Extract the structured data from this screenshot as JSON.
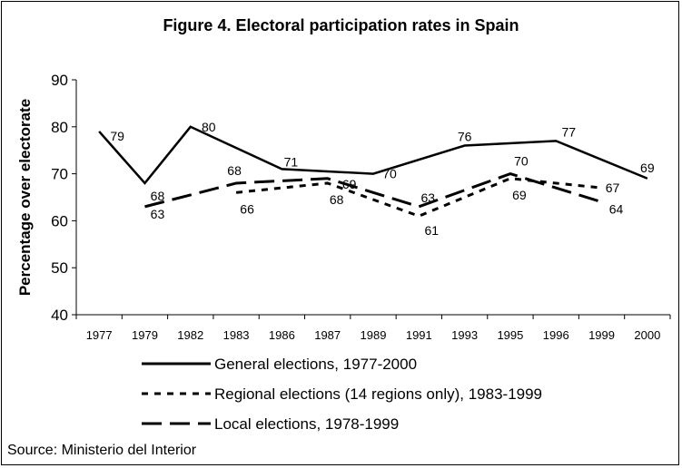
{
  "chart_data": {
    "type": "line",
    "title": "Figure 4. Electoral participation rates in Spain",
    "ylabel": "Percentage over electorate",
    "xlabel": "",
    "ylim": [
      40,
      90
    ],
    "yticks": [
      40,
      50,
      60,
      70,
      80,
      90
    ],
    "categories": [
      "1977",
      "1979",
      "1982",
      "1983",
      "1986",
      "1987",
      "1989",
      "1991",
      "1993",
      "1995",
      "1996",
      "1999",
      "2000"
    ],
    "grid": false,
    "legend_position": "bottom",
    "series": [
      {
        "name": "General elections, 1977-2000",
        "style": "solid",
        "color": "#000000",
        "points": [
          {
            "x": "1977",
            "y": 79,
            "label": "79"
          },
          {
            "x": "1979",
            "y": 68,
            "label": "68"
          },
          {
            "x": "1982",
            "y": 80,
            "label": "80"
          },
          {
            "x": "1986",
            "y": 71,
            "label": "71"
          },
          {
            "x": "1989",
            "y": 70,
            "label": "70"
          },
          {
            "x": "1993",
            "y": 76,
            "label": "76"
          },
          {
            "x": "1996",
            "y": 77,
            "label": "77"
          },
          {
            "x": "2000",
            "y": 69,
            "label": "69"
          }
        ]
      },
      {
        "name": "Regional elections (14 regions only), 1983-1999",
        "style": "dotted",
        "color": "#000000",
        "points": [
          {
            "x": "1983",
            "y": 66,
            "label": "66"
          },
          {
            "x": "1987",
            "y": 68,
            "label": "68"
          },
          {
            "x": "1991",
            "y": 61,
            "label": "61"
          },
          {
            "x": "1995",
            "y": 69,
            "label": "69"
          },
          {
            "x": "1999",
            "y": 67,
            "label": "67"
          }
        ]
      },
      {
        "name": "Local elections, 1978-1999",
        "style": "dashed",
        "color": "#000000",
        "points": [
          {
            "x": "1979",
            "y": 63,
            "label": "63"
          },
          {
            "x": "1983",
            "y": 68,
            "label": "68"
          },
          {
            "x": "1987",
            "y": 69,
            "label": "69"
          },
          {
            "x": "1991",
            "y": 63,
            "label": "63"
          },
          {
            "x": "1995",
            "y": 70,
            "label": "70"
          },
          {
            "x": "1999",
            "y": 64,
            "label": "64"
          }
        ]
      }
    ]
  },
  "source": "Source: Ministerio del Interior"
}
